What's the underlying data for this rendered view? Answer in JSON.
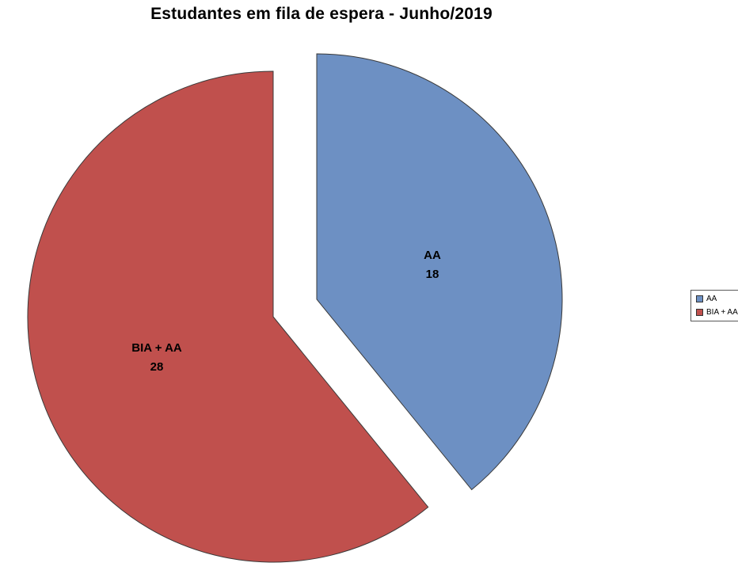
{
  "chart_data": {
    "type": "pie",
    "title": "Estudantes em fila de espera - Junho/2019",
    "categories": [
      "AA",
      "BIA + AA"
    ],
    "values": [
      18,
      28
    ],
    "colors": [
      "#6D90C3",
      "#C0504D"
    ],
    "legend": [
      "AA",
      "BIA + AA"
    ],
    "legend_position": "right",
    "exploded": true,
    "start_angle_deg": 0,
    "direction": "clockwise"
  }
}
